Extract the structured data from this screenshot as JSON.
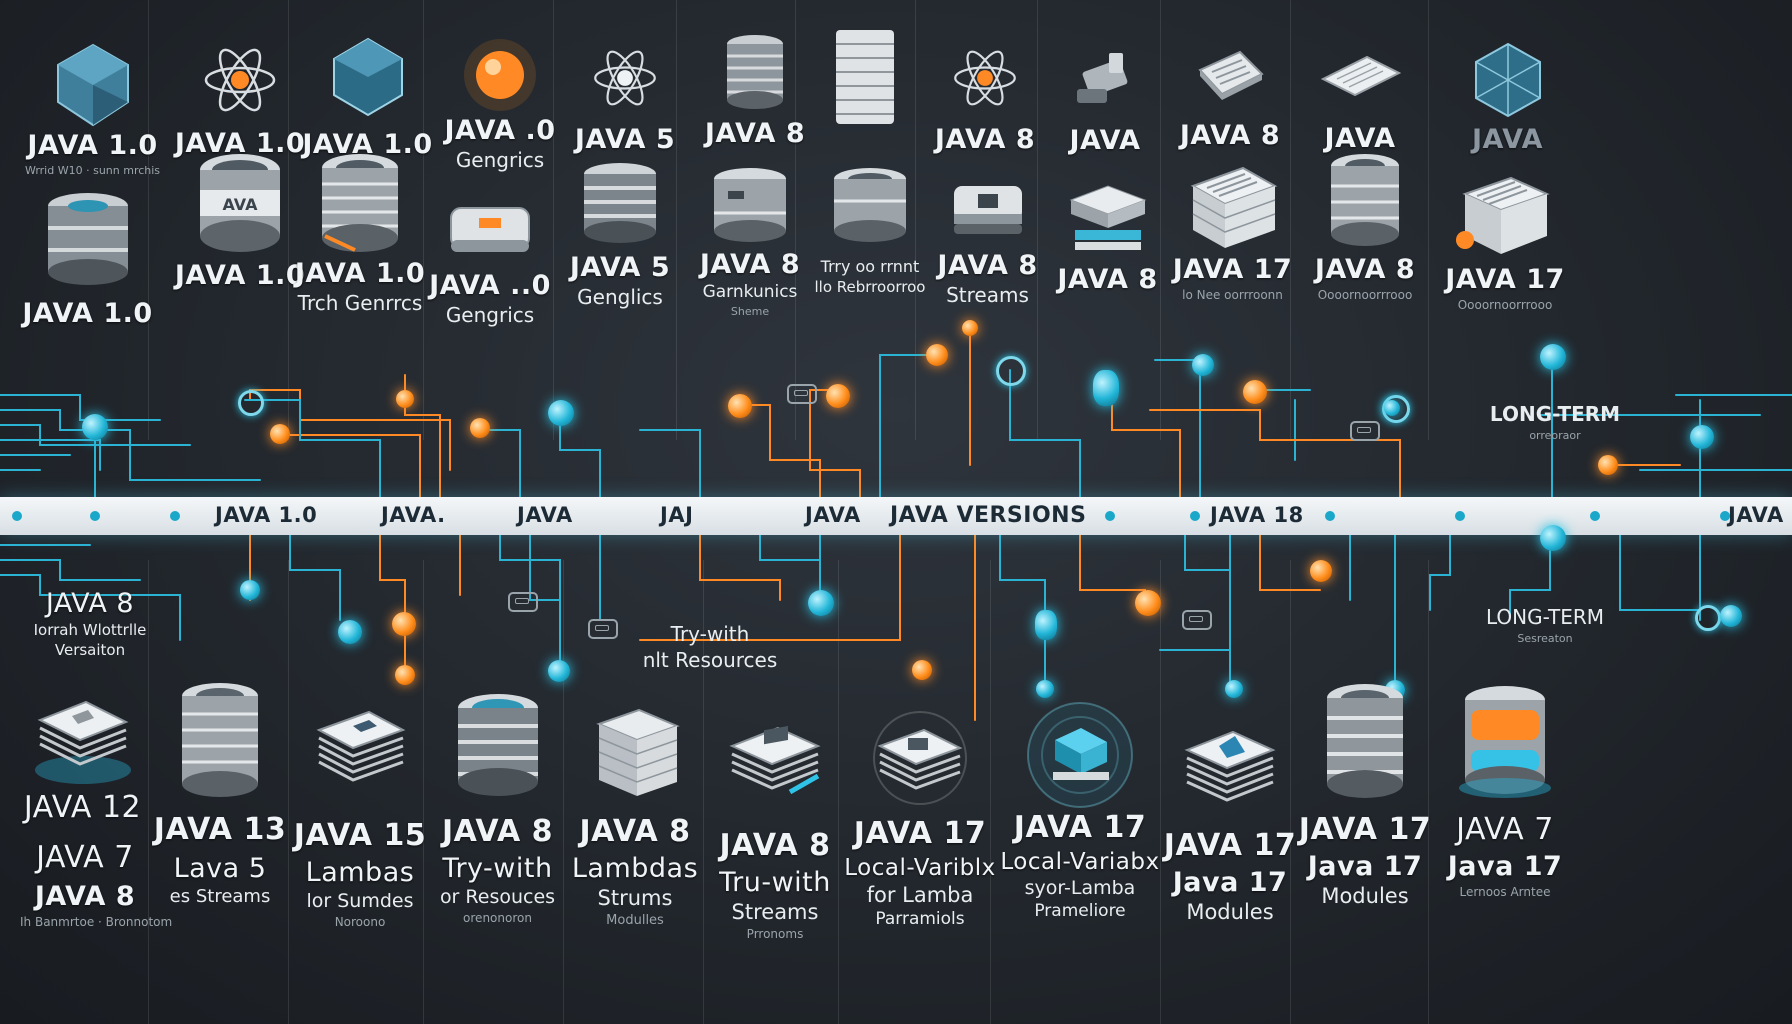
{
  "timeline": {
    "labels": [
      "JAVA 1.0",
      "JAVA.",
      "JAVA",
      "JAJ",
      "JAVA",
      "JAVA VERSIONS",
      "JAVA 18",
      "JAVA"
    ]
  },
  "top_cards": [
    {
      "title": "JAVA 1.0",
      "subtitle": "",
      "caption": "Wrrid W10 · sunn mrchis"
    },
    {
      "title": "JAVA 1.0",
      "subtitle": "",
      "caption": ""
    },
    {
      "title": "JAVA 1.0",
      "subtitle": "",
      "caption": ""
    },
    {
      "title": "JAVA .0",
      "subtitle": "Gengrics",
      "caption": ""
    },
    {
      "title": "JAVA 5",
      "subtitle": "",
      "caption": ""
    },
    {
      "title": "JAVA 8",
      "subtitle": "",
      "caption": ""
    },
    {
      "title": "JAVA 8",
      "subtitle": "",
      "caption": ""
    },
    {
      "title": "JAVA",
      "subtitle": "",
      "caption": ""
    },
    {
      "title": "JAVA 8",
      "subtitle": "",
      "caption": ""
    },
    {
      "title": "JAVA",
      "subtitle": "",
      "caption": ""
    },
    {
      "title": "JAVA",
      "subtitle": "",
      "caption": ""
    }
  ],
  "mid_cards": [
    {
      "title": "JAVA 1.0",
      "subtitle": "",
      "caption": ""
    },
    {
      "title": "JAVA 1.0",
      "subtitle": "",
      "caption": ""
    },
    {
      "title": "JAVA 1.0",
      "subtitle": "Trch Genrrcs",
      "caption": ""
    },
    {
      "title": "JAVA ..0",
      "subtitle": "Gengrics",
      "caption": ""
    },
    {
      "title": "JAVA 5",
      "subtitle": "Genglics",
      "caption": ""
    },
    {
      "title": "JAVA 8",
      "subtitle": "Garnkunics",
      "caption": "Sheme"
    },
    {
      "title": "",
      "subtitle": "Trry oo rrnnt",
      "caption": "llo Rebrroorroo"
    },
    {
      "title": "JAVA 8",
      "subtitle": "Streams",
      "caption": ""
    },
    {
      "title": "JAVA 8",
      "subtitle": "",
      "caption": ""
    },
    {
      "title": "JAVA 17",
      "subtitle": "",
      "caption": "lo Nee oorrroonn"
    },
    {
      "title": "JAVA 8",
      "subtitle": "",
      "caption": "Oooornoorrrooo"
    },
    {
      "title": "JAVA 17",
      "subtitle": "",
      "caption": "Oooornoorrrooo"
    }
  ],
  "side_notes": {
    "left_title": "JAVA 8",
    "left_line1": "Iorrah Wlottrlle",
    "left_line2": "Versaiton",
    "try_with_1": "Try-with",
    "try_with_2": "nlt Resources",
    "long_term_1": "LONG-TERM",
    "long_term_1_sub": "orreoraor",
    "long_term_2": "LONG-TERM",
    "long_term_2_sub": "Sesreaton"
  },
  "bottom_cards": [
    {
      "title1": "JAVA 12",
      "title2": "",
      "sub": "",
      "caption": ""
    },
    {
      "title1": "JAVA 7",
      "title2": "JAVA 8",
      "sub": "",
      "caption": "Ih Banmrtoe · Bronnotom"
    },
    {
      "title1": "JAVA 13",
      "title2": "Lava 5",
      "sub": "es Streams",
      "caption": ""
    },
    {
      "title1": "JAVA 15",
      "title2": "Lambas",
      "sub": "lor Sumdes",
      "caption": "Noroono"
    },
    {
      "title1": "JAVA 8",
      "title2": "Try-with",
      "sub": "or Resouces",
      "caption": "orenonoron"
    },
    {
      "title1": "JAVA 8",
      "title2": "Lambdas",
      "sub": "Strums",
      "caption": "Modulles"
    },
    {
      "title1": "JAVA 8",
      "title2": "Tru-with",
      "sub": "Streams",
      "caption": "Prronoms"
    },
    {
      "title1": "JAVA 17",
      "title2": "Local-Variblx",
      "sub": "for Lamba",
      "caption": "Parramiols"
    },
    {
      "title1": "JAVA 17",
      "title2": "Local-Variabx",
      "sub": "syor-Lamba",
      "caption": "Prameliore"
    },
    {
      "title1": "JAVA 17",
      "title2": "Java 17",
      "sub": "Modules",
      "caption": ""
    },
    {
      "title1": "JAVA 17",
      "title2": "Java 17",
      "sub": "Modules",
      "caption": ""
    },
    {
      "title1": "JAVA 7",
      "title2": "Java 17",
      "sub": "",
      "caption": "Lernoos Arntee"
    }
  ],
  "colors": {
    "cyan": "#22b6d8",
    "orange": "#ff8c1a",
    "background": "#22272d"
  }
}
